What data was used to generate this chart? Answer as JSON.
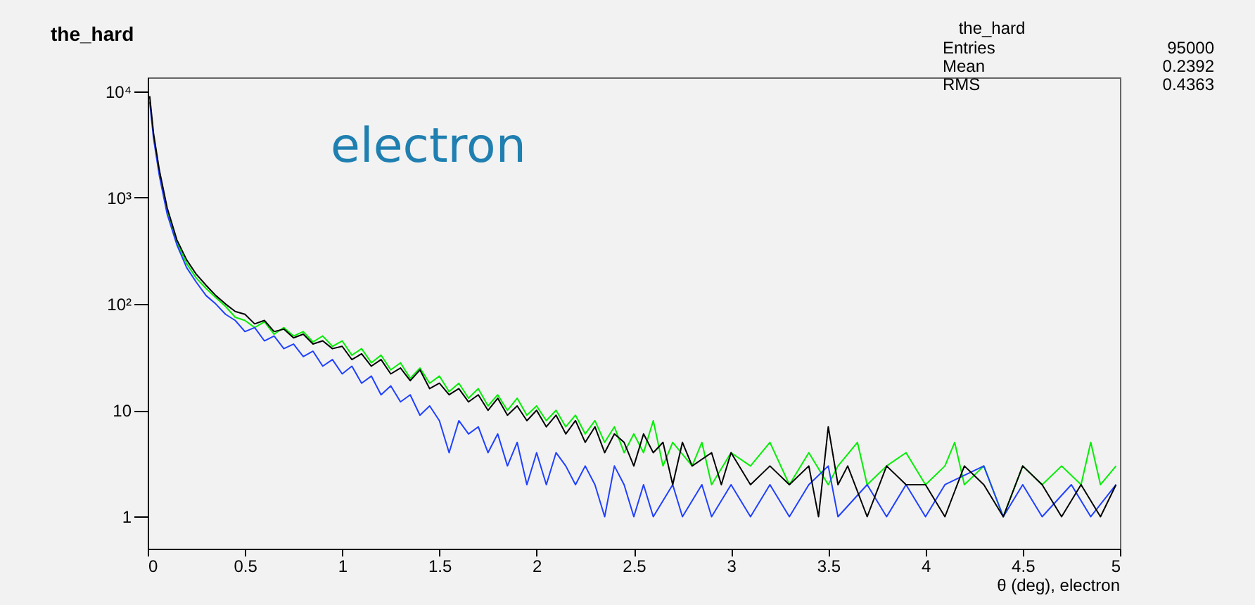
{
  "chart_data": {
    "type": "line",
    "title": "the_hard",
    "xlabel": "θ (deg), electron",
    "annotations": [
      "electron",
      "the_hard",
      "Entries",
      "95000",
      "Mean",
      "0.2392",
      "RMS",
      "0.4363"
    ],
    "log": "y",
    "grid": false,
    "marker": "none",
    "line_style": "solid",
    "xlim": [
      0,
      5
    ],
    "xticks": [
      0,
      0.5,
      1,
      1.5,
      2,
      2.5,
      3,
      3.5,
      4,
      4.5,
      5
    ],
    "ylim": [
      0.5,
      13500
    ],
    "yticks": [
      1,
      10,
      {
        "value": 100,
        "label": "10²"
      },
      {
        "value": 1000,
        "label": "10³"
      },
      {
        "value": 10000,
        "label": "10⁴"
      }
    ],
    "series": [
      {
        "color": "#00ee00",
        "x": [
          0.1,
          0.15,
          0.2,
          0.25,
          0.3,
          0.35,
          0.4,
          0.45,
          0.5,
          0.55,
          0.6,
          0.65,
          0.7,
          0.75,
          0.8,
          0.85,
          0.9,
          0.95,
          1.0,
          1.05,
          1.1,
          1.15,
          1.2,
          1.25,
          1.3,
          1.35,
          1.4,
          1.45,
          1.5,
          1.55,
          1.6,
          1.65,
          1.7,
          1.75,
          1.8,
          1.85,
          1.9,
          1.95,
          2.0,
          2.05,
          2.1,
          2.15,
          2.2,
          2.25,
          2.3,
          2.35,
          2.4,
          2.45,
          2.5,
          2.55,
          2.6,
          2.65,
          2.7,
          2.8,
          2.85,
          2.9,
          3.0,
          3.1,
          3.2,
          3.3,
          3.4,
          3.5,
          3.55,
          3.65,
          3.7,
          3.8,
          3.9,
          4.0,
          4.1,
          4.15,
          4.2,
          4.3,
          4.4,
          4.5,
          4.6,
          4.7,
          4.8,
          4.85,
          4.9,
          4.98
        ],
        "values": [
          750,
          380,
          240,
          175,
          140,
          115,
          95,
          75,
          70,
          60,
          68,
          52,
          60,
          50,
          55,
          44,
          50,
          40,
          45,
          33,
          38,
          28,
          33,
          24,
          28,
          20,
          25,
          18,
          21,
          15,
          18,
          13,
          16,
          11,
          14,
          10,
          13,
          9,
          11,
          8,
          10,
          7,
          9,
          6,
          8,
          5,
          7,
          4,
          6,
          4,
          8,
          3,
          5,
          3,
          5,
          2,
          4,
          3,
          5,
          2,
          4,
          2,
          3,
          5,
          2,
          3,
          4,
          2,
          3,
          5,
          2,
          3,
          1,
          3,
          2,
          3,
          2,
          5,
          2,
          3
        ]
      },
      {
        "color": "#2040ff",
        "x": [
          0.01,
          0.03,
          0.06,
          0.1,
          0.15,
          0.2,
          0.25,
          0.3,
          0.35,
          0.4,
          0.45,
          0.5,
          0.55,
          0.6,
          0.65,
          0.7,
          0.75,
          0.8,
          0.85,
          0.9,
          0.95,
          1.0,
          1.05,
          1.1,
          1.15,
          1.2,
          1.25,
          1.3,
          1.35,
          1.4,
          1.45,
          1.5,
          1.55,
          1.6,
          1.65,
          1.7,
          1.75,
          1.8,
          1.85,
          1.9,
          1.95,
          2.0,
          2.05,
          2.1,
          2.15,
          2.2,
          2.25,
          2.3,
          2.35,
          2.4,
          2.45,
          2.5,
          2.55,
          2.6,
          2.7,
          2.75,
          2.85,
          2.9,
          3.0,
          3.1,
          3.2,
          3.3,
          3.4,
          3.5,
          3.55,
          3.7,
          3.8,
          3.9,
          4.0,
          4.1,
          4.3,
          4.4,
          4.5,
          4.6,
          4.75,
          4.85,
          4.98
        ],
        "values": [
          8000,
          3600,
          1600,
          700,
          360,
          220,
          160,
          120,
          100,
          80,
          70,
          55,
          60,
          45,
          50,
          38,
          42,
          32,
          36,
          26,
          30,
          22,
          26,
          18,
          21,
          14,
          17,
          12,
          14,
          9,
          11,
          8,
          4,
          8,
          6,
          7,
          4,
          6,
          3,
          5,
          2,
          4,
          2,
          4,
          3,
          2,
          3,
          2,
          1,
          3,
          2,
          1,
          2,
          1,
          2,
          1,
          2,
          1,
          2,
          1,
          2,
          1,
          2,
          3,
          1,
          2,
          1,
          2,
          1,
          2,
          3,
          1,
          2,
          1,
          2,
          1,
          2
        ]
      },
      {
        "color": "#000000",
        "x": [
          0.01,
          0.03,
          0.06,
          0.1,
          0.15,
          0.2,
          0.25,
          0.3,
          0.35,
          0.4,
          0.45,
          0.5,
          0.55,
          0.6,
          0.65,
          0.7,
          0.75,
          0.8,
          0.85,
          0.9,
          0.95,
          1.0,
          1.05,
          1.1,
          1.15,
          1.2,
          1.25,
          1.3,
          1.35,
          1.4,
          1.45,
          1.5,
          1.55,
          1.6,
          1.65,
          1.7,
          1.75,
          1.8,
          1.85,
          1.9,
          1.95,
          2.0,
          2.05,
          2.1,
          2.15,
          2.2,
          2.25,
          2.3,
          2.35,
          2.4,
          2.45,
          2.5,
          2.55,
          2.6,
          2.65,
          2.7,
          2.75,
          2.8,
          2.9,
          2.95,
          3.0,
          3.1,
          3.2,
          3.3,
          3.4,
          3.45,
          3.5,
          3.55,
          3.6,
          3.7,
          3.8,
          3.9,
          4.0,
          4.1,
          4.2,
          4.3,
          4.4,
          4.5,
          4.6,
          4.7,
          4.8,
          4.9,
          4.98
        ],
        "values": [
          9000,
          4000,
          1800,
          800,
          400,
          260,
          190,
          150,
          120,
          100,
          85,
          80,
          65,
          70,
          55,
          58,
          48,
          52,
          42,
          45,
          38,
          40,
          30,
          34,
          26,
          30,
          22,
          25,
          19,
          24,
          16,
          18,
          14,
          16,
          12,
          14,
          10,
          13,
          9,
          11,
          8,
          10,
          7,
          9,
          6,
          8,
          5,
          7,
          4,
          6,
          5,
          3,
          6,
          4,
          5,
          2,
          5,
          3,
          4,
          2,
          4,
          2,
          3,
          2,
          3,
          1,
          7,
          2,
          3,
          1,
          3,
          2,
          2,
          1,
          3,
          2,
          1,
          3,
          2,
          1,
          2,
          1,
          2
        ]
      }
    ]
  }
}
